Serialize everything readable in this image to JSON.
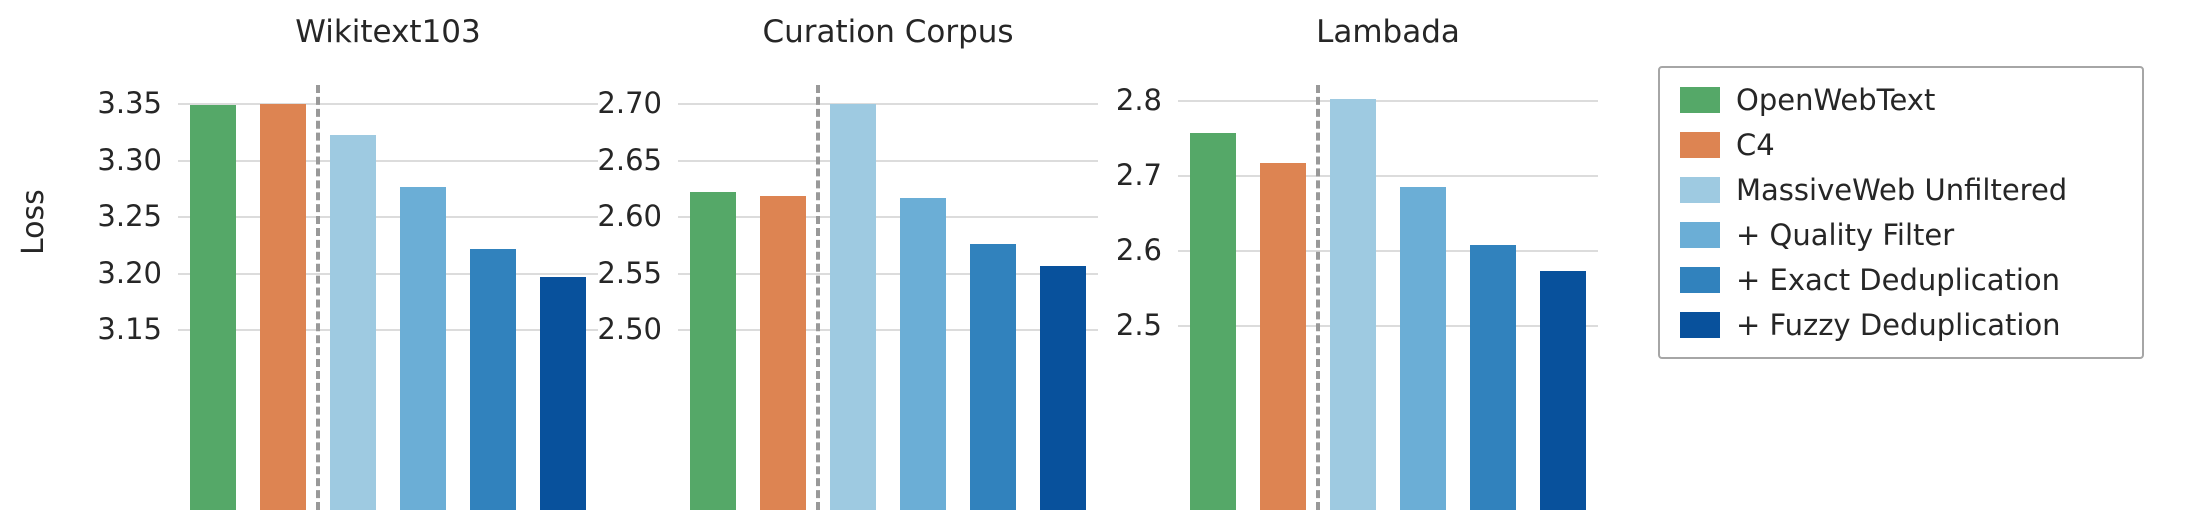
{
  "figure": {
    "ylabel": "Loss"
  },
  "palette": [
    "#55a868",
    "#dd8452",
    "#9ecae1",
    "#6baed6",
    "#3182bd",
    "#08519c"
  ],
  "legend": {
    "items": [
      {
        "label": "OpenWebText",
        "color": "#55a868"
      },
      {
        "label": "C4",
        "color": "#dd8452"
      },
      {
        "label": "MassiveWeb Unfiltered",
        "color": "#9ecae1"
      },
      {
        "label": "+ Quality Filter",
        "color": "#6baed6"
      },
      {
        "label": "+ Exact Deduplication",
        "color": "#3182bd"
      },
      {
        "label": "+ Fuzzy Deduplication",
        "color": "#08519c"
      }
    ]
  },
  "chart_data": [
    {
      "type": "bar",
      "title": "Wikitext103",
      "ylabel": "Loss",
      "categories": [
        "OpenWebText",
        "C4",
        "MassiveWeb Unfiltered",
        "+ Quality Filter",
        "+ Exact Deduplication",
        "+ Fuzzy Deduplication"
      ],
      "values": [
        3.348,
        3.349,
        3.322,
        3.276,
        3.221,
        3.196
      ],
      "yticks": [
        {
          "value": 3.35,
          "label": "3.35"
        },
        {
          "value": 3.3,
          "label": "3.30"
        },
        {
          "value": 3.25,
          "label": "3.25"
        },
        {
          "value": 3.2,
          "label": "3.20"
        },
        {
          "value": 3.15,
          "label": "3.15"
        }
      ],
      "ylim": [
        2.99,
        3.366
      ],
      "divider_after": 1,
      "grid": true,
      "legend_position": "outside-right"
    },
    {
      "type": "bar",
      "title": "Curation Corpus",
      "ylabel": "Loss",
      "categories": [
        "OpenWebText",
        "C4",
        "MassiveWeb Unfiltered",
        "+ Quality Filter",
        "+ Exact Deduplication",
        "+ Fuzzy Deduplication"
      ],
      "values": [
        2.621,
        2.618,
        2.699,
        2.616,
        2.575,
        2.556
      ],
      "yticks": [
        {
          "value": 2.7,
          "label": "2.70"
        },
        {
          "value": 2.65,
          "label": "2.65"
        },
        {
          "value": 2.6,
          "label": "2.60"
        },
        {
          "value": 2.55,
          "label": "2.55"
        },
        {
          "value": 2.5,
          "label": "2.50"
        }
      ],
      "ylim": [
        2.34,
        2.716
      ],
      "divider_after": 1,
      "grid": true,
      "legend_position": "outside-right"
    },
    {
      "type": "bar",
      "title": "Lambada",
      "ylabel": "Loss",
      "categories": [
        "OpenWebText",
        "C4",
        "MassiveWeb Unfiltered",
        "+ Quality Filter",
        "+ Exact Deduplication",
        "+ Fuzzy Deduplication"
      ],
      "values": [
        2.756,
        2.716,
        2.801,
        2.684,
        2.607,
        2.572
      ],
      "yticks": [
        {
          "value": 2.8,
          "label": "2.8"
        },
        {
          "value": 2.7,
          "label": "2.7"
        },
        {
          "value": 2.6,
          "label": "2.6"
        },
        {
          "value": 2.5,
          "label": "2.5"
        }
      ],
      "ylim": [
        2.253,
        2.82
      ],
      "divider_after": 1,
      "grid": true,
      "legend_position": "outside-right"
    }
  ]
}
